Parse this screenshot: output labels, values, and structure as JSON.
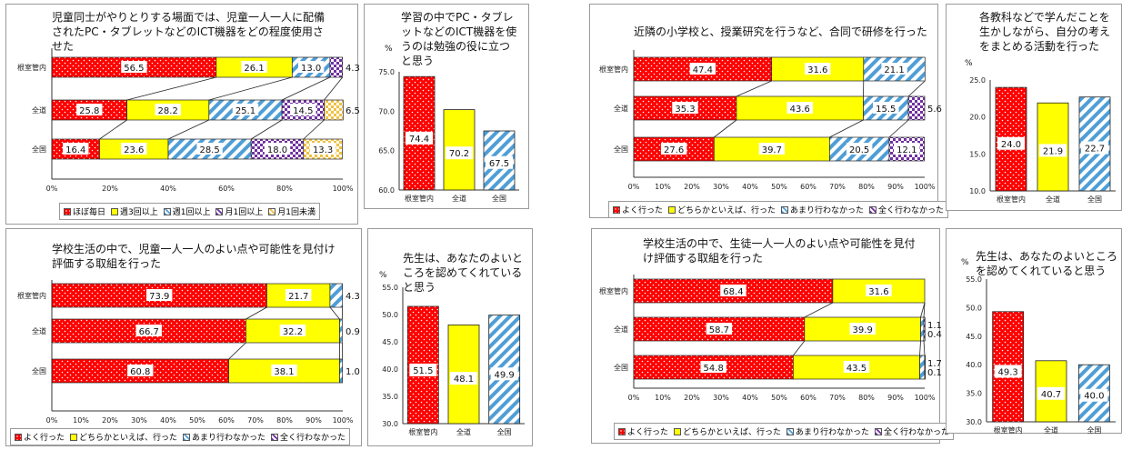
{
  "chart_data": [
    {
      "type": "bar",
      "orientation": "horizontal",
      "stacked": true,
      "title": "児童同士がやりとりする場面では、児童一人一人に配備されたPC・タブレットなどのICT機器をどの程度使用させた",
      "categories": [
        "根室管内",
        "全道",
        "全国"
      ],
      "series": [
        {
          "name": "ほぼ毎日",
          "values": [
            56.5,
            25.8,
            16.4
          ]
        },
        {
          "name": "週3回以上",
          "values": [
            26.1,
            28.2,
            23.6
          ]
        },
        {
          "name": "週1回以上",
          "values": [
            13.0,
            25.1,
            28.5
          ]
        },
        {
          "name": "月1回以上",
          "values": [
            4.3,
            14.5,
            18.0
          ]
        },
        {
          "name": "月1回未満",
          "values": [
            0,
            6.5,
            13.3
          ]
        }
      ],
      "xlim": [
        0,
        100
      ],
      "xticks": [
        "0%",
        "20%",
        "40%",
        "60%",
        "80%",
        "100%"
      ],
      "legend": "bottom"
    },
    {
      "type": "bar",
      "unit": "%",
      "title": "学習の中でPC・タブレットなどのICT機器を使うのは勉強の役に立つと思う",
      "categories": [
        "根室管内",
        "全道",
        "全国"
      ],
      "values": [
        74.4,
        70.2,
        67.5
      ],
      "ylim": [
        60,
        75
      ],
      "yticks": [
        "60.0",
        "65.0",
        "70.0",
        "75.0"
      ]
    },
    {
      "type": "bar",
      "orientation": "horizontal",
      "stacked": true,
      "title": "近隣の小学校と、授業研究を行うなど、合同で研修を行った",
      "categories": [
        "根室管内",
        "全道",
        "全国"
      ],
      "series": [
        {
          "name": "よく行った",
          "values": [
            47.4,
            35.3,
            27.6
          ]
        },
        {
          "name": "どちらかといえば、行った",
          "values": [
            31.6,
            43.6,
            39.7
          ]
        },
        {
          "name": "あまり行わなかった",
          "values": [
            21.1,
            15.5,
            20.5
          ]
        },
        {
          "name": "全く行わなかった",
          "values": [
            0,
            5.6,
            12.1
          ]
        }
      ],
      "xlim": [
        0,
        100
      ],
      "xticks": [
        "0%",
        "10%",
        "20%",
        "30%",
        "40%",
        "50%",
        "60%",
        "70%",
        "80%",
        "90%",
        "100%"
      ],
      "legend": "bottom"
    },
    {
      "type": "bar",
      "unit": "%",
      "title": "各教科などで学んだことを生かしながら、自分の考えをまとめる活動を行った",
      "categories": [
        "根室管内",
        "全道",
        "全国"
      ],
      "values": [
        24.0,
        21.9,
        22.7
      ],
      "ylim": [
        10,
        25
      ],
      "yticks": [
        "10.0",
        "15.0",
        "20.0",
        "25.0"
      ]
    },
    {
      "type": "bar",
      "orientation": "horizontal",
      "stacked": true,
      "title": "学校生活の中で、児童一人一人のよい点や可能性を見付け評価する取組を行った",
      "categories": [
        "根室管内",
        "全道",
        "全国"
      ],
      "series": [
        {
          "name": "よく行った",
          "values": [
            73.9,
            66.7,
            60.8
          ]
        },
        {
          "name": "どちらかといえば、行った",
          "values": [
            21.7,
            32.2,
            38.1
          ]
        },
        {
          "name": "あまり行わなかった",
          "values": [
            4.3,
            0.9,
            1.0
          ]
        },
        {
          "name": "全く行わなかった",
          "values": [
            0,
            0,
            0
          ]
        }
      ],
      "xlim": [
        0,
        100
      ],
      "xticks": [
        "0%",
        "10%",
        "20%",
        "30%",
        "40%",
        "50%",
        "60%",
        "70%",
        "80%",
        "90%",
        "100%"
      ],
      "legend": "bottom"
    },
    {
      "type": "bar",
      "unit": "%",
      "title": "先生は、あなたのよいところを認めてくれていると思う",
      "categories": [
        "根室管内",
        "全道",
        "全国"
      ],
      "values": [
        51.5,
        48.1,
        49.9
      ],
      "ylim": [
        30,
        55
      ],
      "yticks": [
        "30.0",
        "35.0",
        "40.0",
        "45.0",
        "50.0",
        "55.0"
      ]
    },
    {
      "type": "bar",
      "orientation": "horizontal",
      "stacked": true,
      "title": "学校生活の中で、生徒一人一人のよい点や可能性を見付け評価する取組を行った",
      "categories": [
        "根室管内",
        "全道",
        "全国"
      ],
      "series": [
        {
          "name": "よく行った",
          "values": [
            68.4,
            58.7,
            54.8
          ]
        },
        {
          "name": "どちらかといえば、行った",
          "values": [
            31.6,
            39.9,
            43.5
          ]
        },
        {
          "name": "あまり行わなかった",
          "values": [
            0,
            1.1,
            1.7
          ]
        },
        {
          "name": "全く行わなかった",
          "values": [
            0,
            0.4,
            0.1
          ]
        }
      ],
      "xlim": [
        0,
        100
      ],
      "xticks": [
        "0%",
        "10%",
        "20%",
        "30%",
        "40%",
        "50%",
        "60%",
        "70%",
        "80%",
        "90%",
        "100%"
      ],
      "legend": "bottom"
    },
    {
      "type": "bar",
      "unit": "%",
      "title": "先生は、あなたのよいところを認めてくれていると思う",
      "categories": [
        "根室管内",
        "全道",
        "全国"
      ],
      "values": [
        49.3,
        40.7,
        40.0
      ],
      "ylim": [
        30,
        55
      ],
      "yticks": [
        "30.0",
        "35.0",
        "40.0",
        "45.0",
        "50.0",
        "55.0"
      ]
    }
  ],
  "colors": {
    "red": "#ff0000",
    "yellow": "#ffff00",
    "blue": "#4f9ed6",
    "purple": "#7030a0",
    "orange": "#f0c040"
  }
}
